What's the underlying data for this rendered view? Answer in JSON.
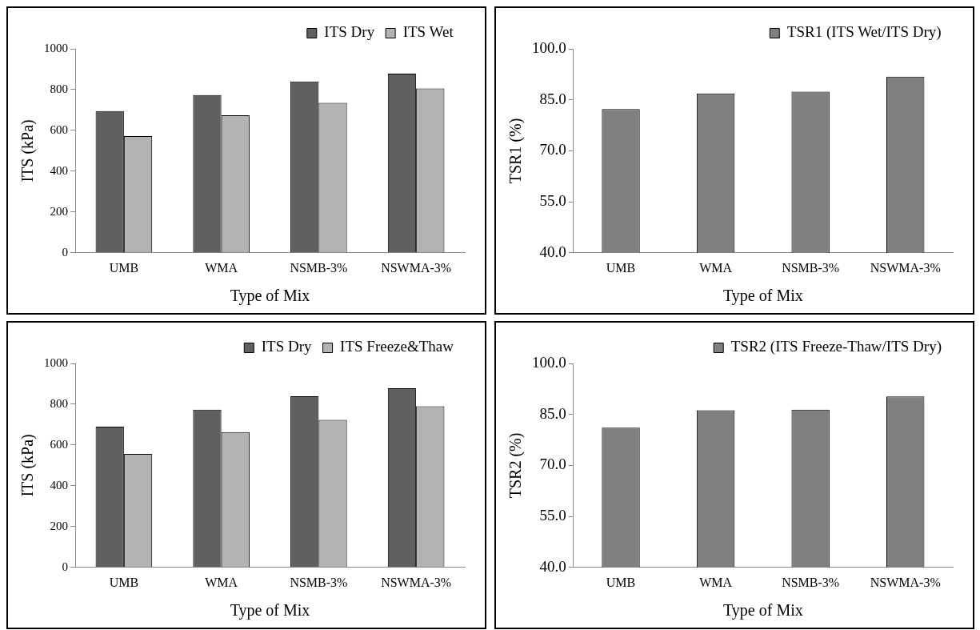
{
  "chart_data": [
    {
      "type": "bar",
      "xlabel": "Type of Mix",
      "ylabel": "ITS (kPa)",
      "categories": [
        "UMB",
        "WMA",
        "NSMB-3%",
        "NSWMA-3%"
      ],
      "series": [
        {
          "name": "ITS Dry",
          "color": "#606060",
          "values": [
            695,
            773,
            840,
            878
          ]
        },
        {
          "name": "ITS Wet",
          "color": "#b3b3b3",
          "values": [
            572,
            674,
            735,
            806
          ]
        }
      ],
      "ylim": [
        0,
        1000
      ],
      "yticks": [
        0,
        200,
        400,
        600,
        800,
        1000
      ],
      "grid": false,
      "legend": "top right"
    },
    {
      "type": "bar",
      "xlabel": "Type of Mix",
      "ylabel": "TSR1 (%)",
      "categories": [
        "UMB",
        "WMA",
        "NSMB-3%",
        "NSWMA-3%"
      ],
      "series": [
        {
          "name": "TSR1 (ITS Wet/ITS Dry)",
          "color": "#808080",
          "values": [
            82.3,
            86.9,
            87.4,
            91.8
          ]
        }
      ],
      "ylim": [
        40,
        100
      ],
      "yticks": [
        {
          "value": 40,
          "label": "40.0"
        },
        {
          "value": 55,
          "label": "55.0"
        },
        {
          "value": 70,
          "label": "70.0"
        },
        {
          "value": 85,
          "label": "85.0"
        },
        {
          "value": 100,
          "label": "100.0"
        }
      ],
      "grid": false,
      "legend": "top right"
    },
    {
      "type": "bar",
      "xlabel": "Type of Mix",
      "ylabel": "ITS (kPa)",
      "categories": [
        "UMB",
        "WMA",
        "NSMB-3%",
        "NSWMA-3%"
      ],
      "series": [
        {
          "name": "ITS Dry",
          "color": "#606060",
          "values": [
            690,
            773,
            839,
            878
          ]
        },
        {
          "name": "ITS Freeze&Thaw",
          "color": "#b3b3b3",
          "values": [
            557,
            663,
            723,
            790
          ]
        }
      ],
      "ylim": [
        0,
        1000
      ],
      "yticks": [
        0,
        200,
        400,
        600,
        800,
        1000
      ],
      "grid": false,
      "legend": "top right"
    },
    {
      "type": "bar",
      "xlabel": "Type of Mix",
      "ylabel": "TSR2 (%)",
      "categories": [
        "UMB",
        "WMA",
        "NSMB-3%",
        "NSWMA-3%"
      ],
      "series": [
        {
          "name": "TSR2 (ITS Freeze-Thaw/ITS Dry)",
          "color": "#808080",
          "values": [
            81.1,
            86.2,
            86.4,
            90.3
          ]
        }
      ],
      "ylim": [
        40,
        100
      ],
      "yticks": [
        {
          "value": 40,
          "label": "40.0"
        },
        {
          "value": 55,
          "label": "55.0"
        },
        {
          "value": 70,
          "label": "70.0"
        },
        {
          "value": 85,
          "label": "85.0"
        },
        {
          "value": 100,
          "label": "100.0"
        }
      ],
      "grid": false,
      "legend": "top right"
    }
  ]
}
